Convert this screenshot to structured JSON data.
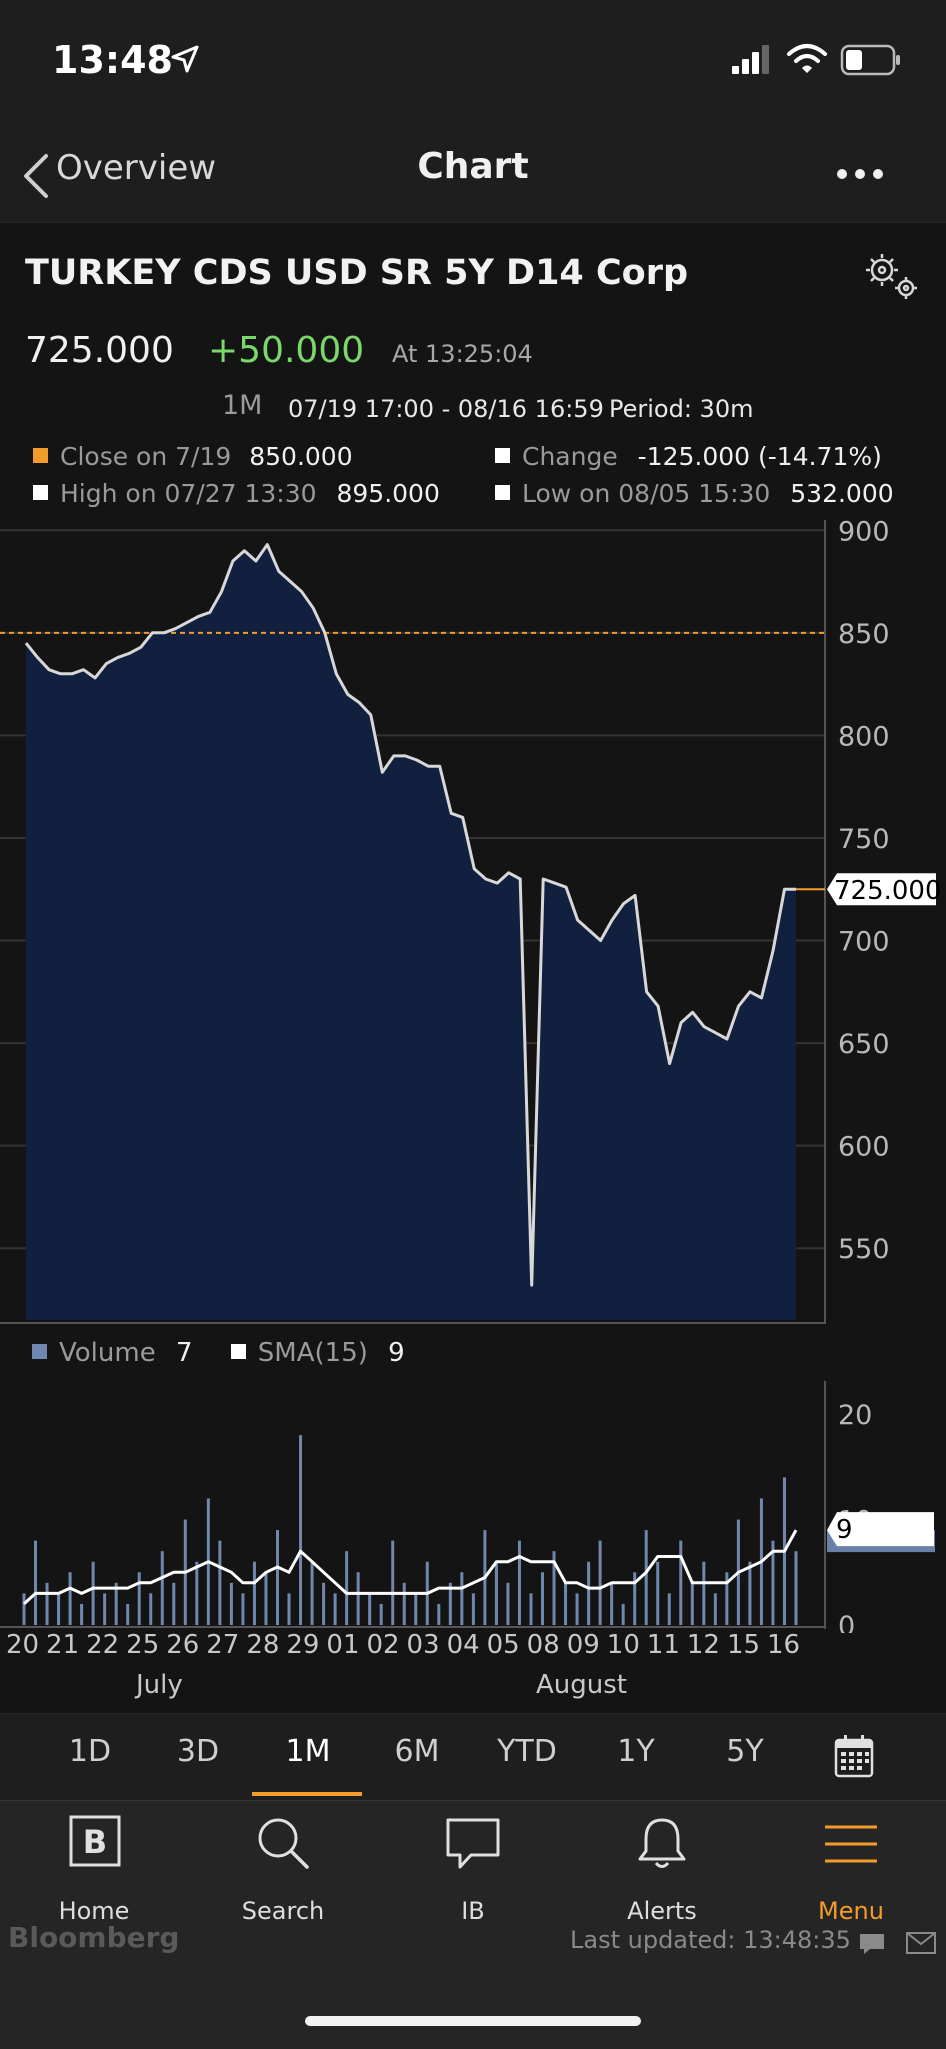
{
  "status_bar": {
    "time": "13:48"
  },
  "nav": {
    "back_label": "Overview",
    "title": "Chart"
  },
  "security": {
    "title": "TURKEY CDS USD SR 5Y D14 Corp",
    "last": "725.000",
    "change": "+50.000",
    "as_of": "At 13:25:04"
  },
  "period_info": {
    "range_code": "1M",
    "range": "07/19 17:00 - 08/16 16:59",
    "period": "Period: 30m"
  },
  "legend": {
    "close_label": "Close on 7/19",
    "close_value": "850.000",
    "change_label": "Change",
    "change_value": "-125.000 (-14.71%)",
    "high_label": "High on 07/27 13:30",
    "high_value": "895.000",
    "low_label": "Low on 08/05 15:30",
    "low_value": "532.000"
  },
  "volume_legend": {
    "volume_label": "Volume",
    "volume_value": "7",
    "sma_label": "SMA(15)",
    "sma_value": "9"
  },
  "colors": {
    "background": "#141414",
    "area_fill": "#11203f",
    "price_line": "#d8d8d8",
    "reference_line": "#f39c2b",
    "change_positive": "#7bd86b",
    "volume_bar": "#7088b0",
    "accent": "#f39c2b"
  },
  "chart_data": [
    {
      "type": "area",
      "reference_line": 850,
      "last_label": "725.000",
      "ylim": [
        515,
        905
      ],
      "y_ticks": [
        "900",
        "850",
        "800",
        "750",
        "700",
        "650",
        "600",
        "550"
      ],
      "y_tick_values": [
        900,
        850,
        800,
        750,
        700,
        650,
        600,
        550
      ],
      "series": [
        {
          "values": [
            845,
            838,
            832,
            830,
            830,
            832,
            828,
            835,
            838,
            840,
            843,
            850,
            850,
            852,
            855,
            858,
            860,
            870,
            885,
            890,
            885,
            893,
            880,
            875,
            870,
            862,
            850,
            830,
            820,
            816,
            810,
            782,
            790,
            790,
            788,
            785,
            785,
            762,
            760,
            735,
            730,
            728,
            733,
            730,
            532,
            730,
            728,
            726,
            710,
            705,
            700,
            710,
            718,
            722,
            675,
            668,
            640,
            660,
            665,
            658,
            655,
            652,
            668,
            675,
            672,
            695,
            725,
            725
          ]
        }
      ]
    },
    {
      "type": "bar",
      "ylim": [
        0,
        22
      ],
      "y_ticks": [
        "20",
        "10",
        "0"
      ],
      "y_tick_values": [
        20,
        10,
        0
      ],
      "last_label": "9",
      "series": [
        {
          "values": [
            3,
            8,
            4,
            3,
            5,
            2,
            6,
            3,
            4,
            2,
            5,
            3,
            7,
            4,
            10,
            6,
            12,
            8,
            4,
            3,
            6,
            5,
            9,
            3,
            18,
            6,
            4,
            3,
            7,
            5,
            3,
            2,
            8,
            4,
            3,
            6,
            2,
            4,
            5,
            3,
            9,
            6,
            4,
            8,
            3,
            5,
            7,
            4,
            3,
            6,
            8,
            4,
            2,
            5,
            9,
            6,
            3,
            8,
            4,
            6,
            3,
            5,
            10,
            6,
            12,
            8,
            14,
            7
          ]
        },
        {
          "name": "SMA(15)",
          "values": [
            2,
            3,
            3,
            3,
            3.5,
            3,
            3.5,
            3.5,
            3.5,
            3.5,
            4,
            4,
            4.5,
            5,
            5,
            5.5,
            6,
            5.5,
            5,
            4,
            4,
            5,
            5.5,
            5,
            7,
            6,
            5,
            4,
            3,
            3,
            3,
            3,
            3,
            3,
            3,
            3,
            3.5,
            3.5,
            3.5,
            4,
            4.5,
            6,
            6,
            6.5,
            6,
            6,
            6,
            4,
            4,
            3.5,
            3.5,
            4,
            4,
            4,
            5,
            6.5,
            6.5,
            6.5,
            4,
            4,
            4,
            4,
            5,
            5.5,
            6,
            7,
            7,
            9
          ]
        }
      ]
    }
  ],
  "x_axis": {
    "days": [
      "20",
      "21",
      "22",
      "25",
      "26",
      "27",
      "28",
      "29",
      "01",
      "02",
      "03",
      "04",
      "05",
      "08",
      "09",
      "10",
      "11",
      "12",
      "15",
      "16"
    ],
    "months": [
      "July",
      "August"
    ]
  },
  "period_tabs": [
    "1D",
    "3D",
    "1M",
    "6M",
    "YTD",
    "1Y",
    "5Y"
  ],
  "active_period": "1M",
  "tabs": [
    {
      "label": "Home",
      "icon": "bloomberg-b-icon"
    },
    {
      "label": "Search",
      "icon": "search-icon"
    },
    {
      "label": "IB",
      "icon": "chat-bubble-icon"
    },
    {
      "label": "Alerts",
      "icon": "bell-icon"
    },
    {
      "label": "Menu",
      "icon": "hamburger-menu-icon"
    }
  ],
  "footer": {
    "brand": "Bloomberg",
    "last_updated": "Last updated: 13:48:35"
  }
}
